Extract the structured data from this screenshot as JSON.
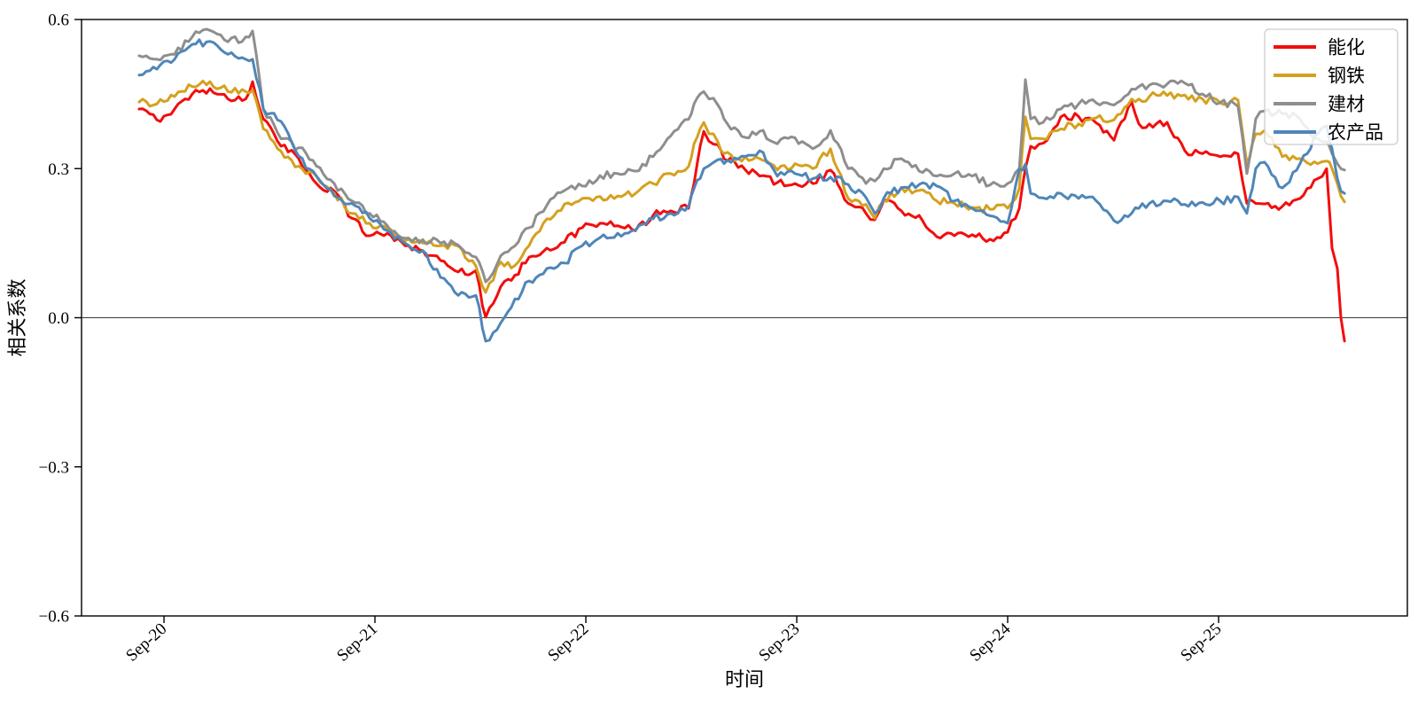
{
  "chart_data": {
    "type": "line",
    "title": "",
    "xlabel": "时间",
    "ylabel": "相关系数",
    "x_unit": "years since Sep-2020",
    "x_range": [
      -0.391,
      5.895
    ],
    "y_range": [
      -0.6,
      0.6
    ],
    "grid": false,
    "zero_line": true,
    "legend_position": "top-right",
    "frame_color": "#000000",
    "zero_line_color": "#3a3a3a",
    "x_ticks": [
      {
        "t": 0,
        "label": "Sep-20"
      },
      {
        "t": 1,
        "label": "Sep-21"
      },
      {
        "t": 2,
        "label": "Sep-22"
      },
      {
        "t": 3,
        "label": "Sep-23"
      },
      {
        "t": 4,
        "label": "Sep-24"
      },
      {
        "t": 5,
        "label": "Sep-25"
      }
    ],
    "y_ticks": [
      {
        "v": 0.6,
        "label": "0.6"
      },
      {
        "v": 0.3,
        "label": "0.3"
      },
      {
        "v": 0.0,
        "label": "0.0"
      },
      {
        "v": -0.3,
        "label": "−0.3"
      },
      {
        "v": -0.6,
        "label": "−0.6"
      }
    ],
    "x": [
      -0.118,
      -0.034,
      0.05,
      0.134,
      0.218,
      0.303,
      0.387,
      0.42,
      0.471,
      0.555,
      0.639,
      0.723,
      0.807,
      0.891,
      0.975,
      1.059,
      1.143,
      1.227,
      1.311,
      1.395,
      1.479,
      1.525,
      1.597,
      1.647,
      1.731,
      1.815,
      1.899,
      1.983,
      2.067,
      2.151,
      2.235,
      2.319,
      2.403,
      2.487,
      2.513,
      2.542,
      2.559,
      2.584,
      2.626,
      2.655,
      2.739,
      2.824,
      2.908,
      2.992,
      3.076,
      3.16,
      3.244,
      3.328,
      3.37,
      3.412,
      3.496,
      3.58,
      3.664,
      3.748,
      3.832,
      3.916,
      4.0,
      4.055,
      4.084,
      4.109,
      4.168,
      4.252,
      4.336,
      4.42,
      4.504,
      4.588,
      4.622,
      4.672,
      4.756,
      4.84,
      4.924,
      5.008,
      5.092,
      5.134,
      5.16,
      5.176,
      5.218,
      5.302,
      5.386,
      5.47,
      5.512,
      5.538,
      5.563,
      5.58,
      5.597
    ],
    "series": [
      {
        "name": "能化",
        "color": "#f20d0d",
        "values": [
          0.42,
          0.398,
          0.42,
          0.45,
          0.461,
          0.44,
          0.44,
          0.475,
          0.4,
          0.345,
          0.32,
          0.27,
          0.255,
          0.2,
          0.165,
          0.17,
          0.145,
          0.135,
          0.115,
          0.092,
          0.095,
          0.001,
          0.063,
          0.075,
          0.122,
          0.14,
          0.152,
          0.181,
          0.19,
          0.185,
          0.175,
          0.206,
          0.215,
          0.22,
          0.27,
          0.345,
          0.375,
          0.355,
          0.348,
          0.32,
          0.306,
          0.285,
          0.272,
          0.27,
          0.27,
          0.297,
          0.23,
          0.21,
          0.197,
          0.235,
          0.215,
          0.206,
          0.163,
          0.165,
          0.167,
          0.158,
          0.172,
          0.22,
          0.3,
          0.345,
          0.351,
          0.404,
          0.405,
          0.392,
          0.357,
          0.434,
          0.39,
          0.39,
          0.393,
          0.336,
          0.33,
          0.324,
          0.33,
          0.23,
          0.235,
          0.23,
          0.229,
          0.224,
          0.24,
          0.28,
          0.3,
          0.14,
          0.099,
          0.0,
          -0.047
        ]
      },
      {
        "name": "钢铁",
        "color": "#d4a11f",
        "values": [
          0.434,
          0.43,
          0.445,
          0.465,
          0.475,
          0.455,
          0.455,
          0.458,
          0.38,
          0.335,
          0.305,
          0.285,
          0.25,
          0.21,
          0.19,
          0.18,
          0.155,
          0.15,
          0.145,
          0.144,
          0.104,
          0.051,
          0.112,
          0.1,
          0.145,
          0.199,
          0.229,
          0.24,
          0.244,
          0.245,
          0.25,
          0.27,
          0.29,
          0.304,
          0.35,
          0.38,
          0.393,
          0.37,
          0.354,
          0.33,
          0.315,
          0.32,
          0.297,
          0.31,
          0.3,
          0.34,
          0.24,
          0.228,
          0.2,
          0.235,
          0.262,
          0.256,
          0.235,
          0.23,
          0.222,
          0.218,
          0.22,
          0.26,
          0.404,
          0.36,
          0.36,
          0.38,
          0.39,
          0.402,
          0.398,
          0.44,
          0.44,
          0.445,
          0.447,
          0.448,
          0.44,
          0.432,
          0.438,
          0.31,
          0.35,
          0.37,
          0.377,
          0.324,
          0.32,
          0.31,
          0.315,
          0.3,
          0.27,
          0.245,
          0.233
        ]
      },
      {
        "name": "建材",
        "color": "#8e8e8e",
        "values": [
          0.527,
          0.52,
          0.53,
          0.565,
          0.578,
          0.555,
          0.565,
          0.577,
          0.42,
          0.36,
          0.342,
          0.305,
          0.27,
          0.235,
          0.21,
          0.185,
          0.16,
          0.157,
          0.15,
          0.146,
          0.122,
          0.072,
          0.125,
          0.14,
          0.181,
          0.226,
          0.256,
          0.265,
          0.286,
          0.29,
          0.295,
          0.324,
          0.366,
          0.399,
          0.43,
          0.45,
          0.455,
          0.44,
          0.428,
          0.4,
          0.365,
          0.375,
          0.35,
          0.362,
          0.34,
          0.377,
          0.3,
          0.27,
          0.275,
          0.3,
          0.32,
          0.295,
          0.285,
          0.29,
          0.285,
          0.267,
          0.27,
          0.3,
          0.479,
          0.4,
          0.393,
          0.42,
          0.43,
          0.432,
          0.428,
          0.46,
          0.465,
          0.468,
          0.47,
          0.472,
          0.45,
          0.433,
          0.425,
          0.29,
          0.35,
          0.4,
          0.416,
          0.41,
          0.4,
          0.36,
          0.354,
          0.33,
          0.31,
          0.3,
          0.297
        ]
      },
      {
        "name": "农产品",
        "color": "#4f86b8",
        "values": [
          0.488,
          0.5,
          0.52,
          0.55,
          0.556,
          0.53,
          0.52,
          0.52,
          0.42,
          0.395,
          0.325,
          0.285,
          0.245,
          0.23,
          0.2,
          0.175,
          0.15,
          0.135,
          0.081,
          0.045,
          0.045,
          -0.047,
          -0.01,
          0.021,
          0.074,
          0.099,
          0.11,
          0.145,
          0.161,
          0.17,
          0.176,
          0.199,
          0.21,
          0.224,
          0.26,
          0.28,
          0.3,
          0.306,
          0.318,
          0.31,
          0.325,
          0.336,
          0.285,
          0.29,
          0.28,
          0.283,
          0.268,
          0.242,
          0.21,
          0.24,
          0.262,
          0.268,
          0.265,
          0.235,
          0.22,
          0.205,
          0.19,
          0.3,
          0.309,
          0.25,
          0.241,
          0.25,
          0.24,
          0.235,
          0.195,
          0.21,
          0.22,
          0.23,
          0.235,
          0.228,
          0.232,
          0.235,
          0.243,
          0.21,
          0.26,
          0.3,
          0.313,
          0.261,
          0.31,
          0.37,
          0.386,
          0.34,
          0.28,
          0.255,
          0.25
        ]
      }
    ]
  }
}
